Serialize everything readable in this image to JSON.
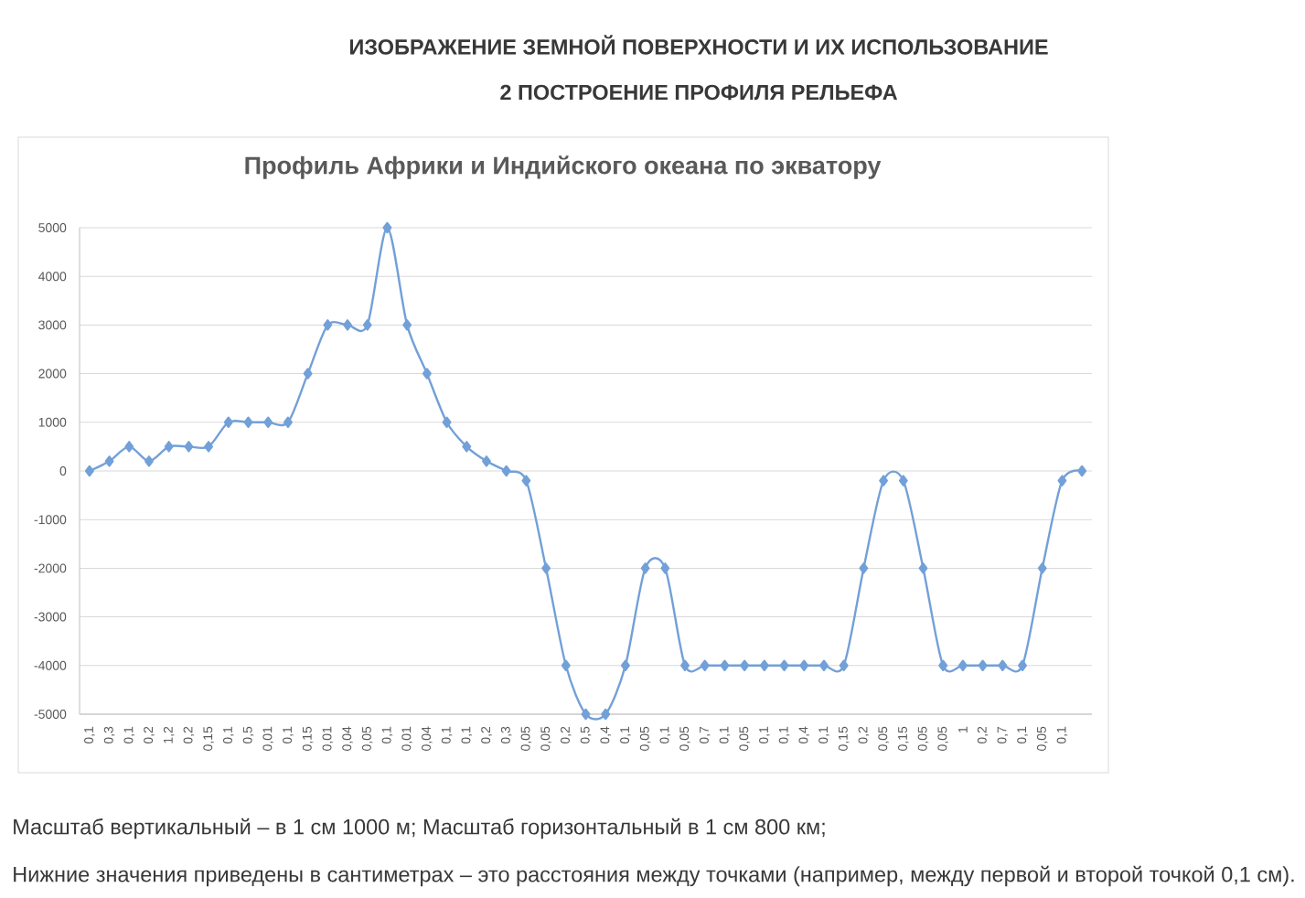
{
  "chart_data": {
    "type": "line",
    "title": "Профиль Африки и Индийского океана по экватору",
    "annotations": [
      "ИЗОБРАЖЕНИЕ ЗЕМНОЙ ПОВЕРХНОСТИ И ИХ ИСПОЛЬЗОВАНИЕ",
      "2 ПОСТРОЕНИЕ ПРОФИЛЯ РЕЛЬЕФА",
      "Масштаб вертикальный – в 1 см 1000 м; Масштаб горизонтальный в 1 см 800 км;",
      "Нижние значения приведены в сантиметрах – это расстояния между точками (например, между первой и второй точкой 0,1 см)."
    ],
    "categories": [
      "0,1",
      "0,3",
      "0,1",
      "0,2",
      "1,2",
      "0,2",
      "0,15",
      "0,1",
      "0,5",
      "0,01",
      "0,1",
      "0,15",
      "0,01",
      "0,04",
      "0,05",
      "0,1",
      "0,01",
      "0,04",
      "0,1",
      "0,1",
      "0,2",
      "0,3",
      "0,05",
      "0,05",
      "0,2",
      "0,5",
      "0,4",
      "0,1",
      "0,05",
      "0,1",
      "0,05",
      "0,7",
      "0,1",
      "0,05",
      "0,1",
      "0,1",
      "0,4",
      "0,1",
      "0,15",
      "0,2",
      "0,05",
      "0,15",
      "0,05",
      "0,05",
      "1",
      "0,2",
      "0,7",
      "0,1",
      "0,05",
      "0,1",
      null
    ],
    "series": [
      {
        "color": "#72a0d8",
        "values": [
          0,
          200,
          500,
          200,
          500,
          500,
          500,
          1000,
          1000,
          1000,
          1000,
          2000,
          3000,
          3000,
          3000,
          5000,
          3000,
          2000,
          1000,
          500,
          200,
          0,
          -200,
          -2000,
          -4000,
          -5000,
          -5000,
          -4000,
          -2000,
          -2000,
          -4000,
          -4000,
          -4000,
          -4000,
          -4000,
          -4000,
          -4000,
          -4000,
          -4000,
          -2000,
          -200,
          -200,
          -2000,
          -4000,
          -4000,
          -4000,
          -4000,
          -4000,
          -2000,
          -200,
          0
        ]
      }
    ],
    "ylim": [
      -5000,
      5000
    ],
    "yticks": [
      -5000,
      -4000,
      -3000,
      -2000,
      -1000,
      0,
      1000,
      2000,
      3000,
      4000,
      5000
    ],
    "grid": "y",
    "marker": "diamond",
    "line_style": "solid"
  }
}
